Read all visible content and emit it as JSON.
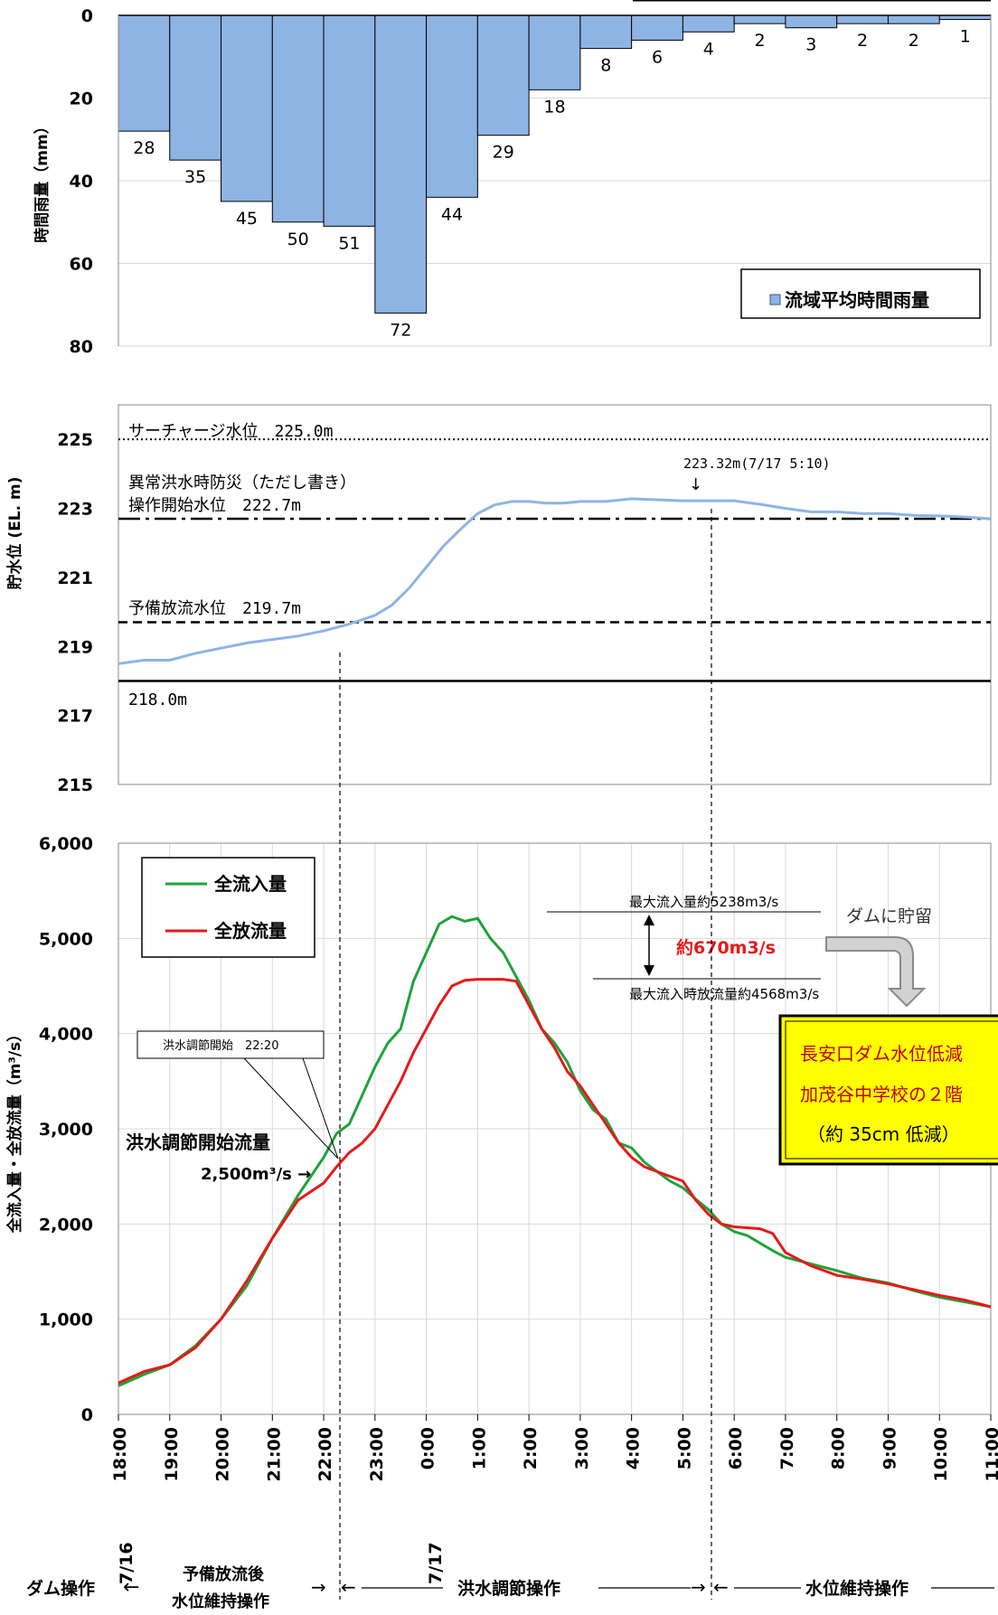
{
  "rain_chart": {
    "type": "bar",
    "ylabel": "時間雨量（mm）",
    "ylim": [
      0,
      80
    ],
    "yticks": [
      0,
      20,
      40,
      60,
      80
    ],
    "legend": "流域平均時間雨量",
    "legend_position": "bottom-right",
    "bar_color": "#8EB4E3",
    "values": [
      28,
      35,
      45,
      50,
      51,
      72,
      44,
      29,
      18,
      8,
      6,
      4,
      2,
      3,
      2,
      2,
      1
    ]
  },
  "level_chart": {
    "type": "line",
    "ylabel": "貯水位 (EL. m)",
    "ylim": [
      215,
      226
    ],
    "yticks": [
      215,
      217,
      219,
      221,
      223,
      225
    ],
    "line_color": "#8EB4E3",
    "surcharge": {
      "label": "サーチャージ水位　225.0m",
      "value": 225.0
    },
    "abnormal": {
      "label1": "異常洪水時防災（ただし書き）",
      "label2": "操作開始水位　222.7m",
      "value": 222.7
    },
    "prerelease": {
      "label": "予備放流水位　219.7m",
      "value": 219.7
    },
    "base": {
      "label": "218.0m",
      "value": 218.0
    },
    "peak_annotation": "223.32m(7/17 5:10)",
    "x": [
      0,
      0.5,
      1,
      1.5,
      2,
      2.5,
      3,
      3.5,
      4,
      4.5,
      5,
      5.33,
      5.67,
      6,
      6.33,
      6.67,
      7,
      7.33,
      7.67,
      8,
      8.33,
      8.67,
      9,
      9.5,
      10,
      10.5,
      11,
      11.5,
      12,
      12.5,
      13,
      13.5,
      14,
      14.5,
      15,
      15.5,
      16,
      16.5,
      17
    ],
    "y": [
      218.5,
      218.6,
      218.6,
      218.8,
      218.95,
      219.1,
      219.2,
      219.3,
      219.45,
      219.65,
      219.9,
      220.2,
      220.7,
      221.3,
      221.9,
      222.4,
      222.85,
      223.1,
      223.2,
      223.2,
      223.15,
      223.15,
      223.2,
      223.2,
      223.28,
      223.25,
      223.22,
      223.22,
      223.22,
      223.12,
      223.0,
      222.9,
      222.9,
      222.85,
      222.85,
      222.8,
      222.78,
      222.75,
      222.7
    ]
  },
  "flow_chart": {
    "type": "line",
    "ylabel": "全流入量・全放流量（m³/s）",
    "ylim": [
      0,
      6000
    ],
    "yticks": [
      "0",
      "1,000",
      "2,000",
      "3,000",
      "4,000",
      "5,000",
      "6,000"
    ],
    "xtick_labels": [
      "18:00",
      "19:00",
      "20:00",
      "21:00",
      "22:00",
      "23:00",
      "0:00",
      "1:00",
      "2:00",
      "3:00",
      "4:00",
      "5:00",
      "6:00",
      "7:00",
      "8:00",
      "9:00",
      "10:00",
      "11:00"
    ],
    "date_labels": [
      "7/16",
      "7/17"
    ],
    "legend_position": "top-left",
    "series": [
      {
        "name": "全流入量",
        "color": "#1FA33A",
        "x": [
          0,
          0.5,
          1,
          1.5,
          2,
          2.5,
          3,
          3.5,
          4,
          4.25,
          4.5,
          4.75,
          5,
          5.25,
          5.5,
          5.75,
          6,
          6.25,
          6.5,
          6.75,
          7,
          7.25,
          7.5,
          7.75,
          8,
          8.25,
          8.5,
          8.75,
          9,
          9.25,
          9.5,
          9.75,
          10,
          10.25,
          10.5,
          10.75,
          11,
          11.25,
          11.5,
          11.75,
          12,
          12.25,
          12.5,
          12.75,
          13,
          13.5,
          14,
          14.5,
          15,
          15.5,
          16,
          16.5,
          17
        ],
        "y": [
          300,
          420,
          520,
          720,
          1000,
          1350,
          1850,
          2300,
          2700,
          2950,
          3050,
          3350,
          3650,
          3900,
          4050,
          4550,
          4850,
          5150,
          5230,
          5180,
          5210,
          5000,
          4850,
          4600,
          4350,
          4050,
          3900,
          3700,
          3400,
          3200,
          3100,
          2850,
          2800,
          2650,
          2550,
          2450,
          2380,
          2260,
          2150,
          2000,
          1920,
          1880,
          1800,
          1720,
          1650,
          1580,
          1510,
          1430,
          1380,
          1300,
          1230,
          1180,
          1130
        ]
      },
      {
        "name": "全放流量",
        "color": "#E51A1A",
        "x": [
          0,
          0.5,
          1,
          1.5,
          2,
          2.5,
          3,
          3.5,
          4,
          4.25,
          4.5,
          4.75,
          5,
          5.25,
          5.5,
          5.75,
          6,
          6.25,
          6.5,
          6.75,
          7,
          7.25,
          7.5,
          7.75,
          8,
          8.25,
          8.5,
          8.75,
          9,
          9.25,
          9.5,
          9.75,
          10,
          10.25,
          10.5,
          10.75,
          11,
          11.25,
          11.5,
          11.75,
          12,
          12.25,
          12.5,
          12.75,
          13,
          13.5,
          14,
          14.5,
          15,
          15.5,
          16,
          16.5,
          17
        ],
        "y": [
          330,
          450,
          520,
          700,
          1000,
          1400,
          1850,
          2250,
          2430,
          2600,
          2750,
          2850,
          3000,
          3250,
          3500,
          3800,
          4050,
          4300,
          4500,
          4560,
          4570,
          4570,
          4570,
          4550,
          4300,
          4050,
          3850,
          3600,
          3450,
          3250,
          3050,
          2850,
          2700,
          2600,
          2550,
          2500,
          2450,
          2250,
          2100,
          2000,
          1970,
          1960,
          1950,
          1900,
          1700,
          1560,
          1460,
          1420,
          1370,
          1310,
          1250,
          1200,
          1130
        ]
      }
    ],
    "start_label": "洪水調節開始　22:20",
    "start_flow_label1": "洪水調節開始流量",
    "start_flow_label2": "2,500m³/s →",
    "max_inflow_label": "最大流入量約5238m3/s",
    "max_release_label": "最大流入時放流量約4568m3/s",
    "diff_label": "約670m3/s",
    "storage_label": "ダムに貯留",
    "callout": {
      "line1": "長安口ダム水位低減",
      "line2": "加茂谷中学校の２階",
      "line3": "（約 35cm 低減）",
      "bg": "#FFFF00"
    }
  },
  "operations": {
    "title": "ダム操作",
    "phase1_line1": "予備放流後",
    "phase1_line2": "水位維持操作",
    "phase2": "洪水調節操作",
    "phase3": "水位維持操作"
  }
}
